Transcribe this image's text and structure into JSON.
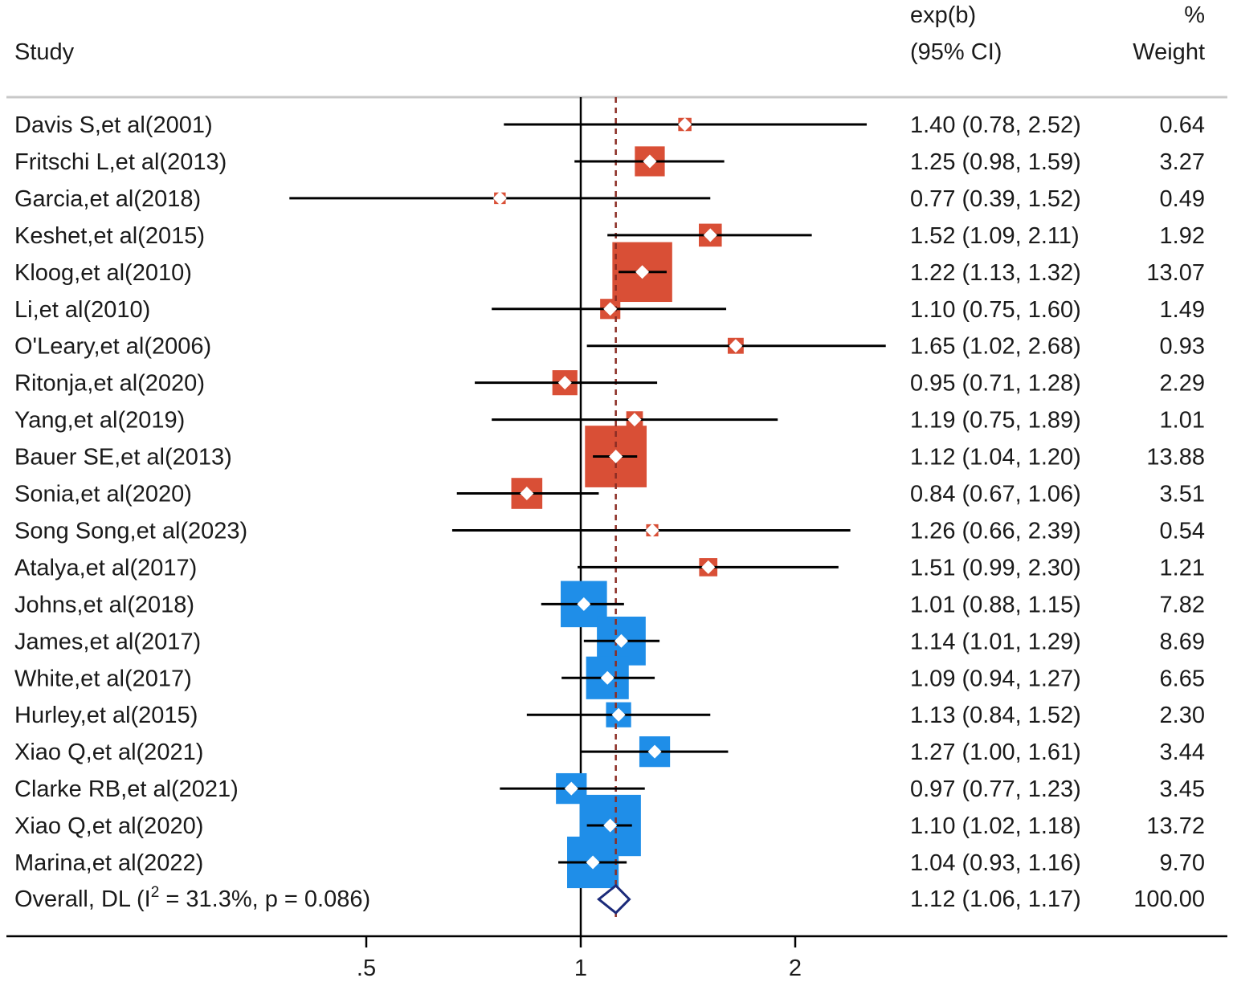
{
  "chart_data": {
    "type": "forest",
    "measure": "exp(b)",
    "header": {
      "study": "Study",
      "effect_line1": "exp(b)",
      "effect_line2": "(95% CI)",
      "weight_line1": "%",
      "weight_line2": "Weight"
    },
    "x_scale": "log",
    "xlim": [
      0.37,
      2.7
    ],
    "null_value": 1,
    "overall_value": 1.12,
    "ticks": [
      {
        "value": 0.5,
        "label": ".5"
      },
      {
        "value": 1,
        "label": "1"
      },
      {
        "value": 2,
        "label": "2"
      }
    ],
    "group_colors": {
      "orange": "#d94f36",
      "blue": "#1f8ee8"
    },
    "marker_color": "#ffffff",
    "ci_color": "#000000",
    "overall_diamond_color": "#1c2b7a",
    "reference_line_color": "#8b2d24",
    "studies": [
      {
        "label": "Davis S,et al(2001)",
        "es": 1.4,
        "lo": 0.78,
        "hi": 2.52,
        "ci_text": "1.40 (0.78, 2.52)",
        "weight": 0.64,
        "weight_text": "0.64",
        "group": "orange"
      },
      {
        "label": "Fritschi L,et al(2013)",
        "es": 1.25,
        "lo": 0.98,
        "hi": 1.59,
        "ci_text": "1.25 (0.98, 1.59)",
        "weight": 3.27,
        "weight_text": "3.27",
        "group": "orange"
      },
      {
        "label": "Garcia,et al(2018)",
        "es": 0.77,
        "lo": 0.39,
        "hi": 1.52,
        "ci_text": "0.77 (0.39, 1.52)",
        "weight": 0.49,
        "weight_text": "0.49",
        "group": "orange"
      },
      {
        "label": "Keshet,et al(2015)",
        "es": 1.52,
        "lo": 1.09,
        "hi": 2.11,
        "ci_text": "1.52 (1.09, 2.11)",
        "weight": 1.92,
        "weight_text": "1.92",
        "group": "orange"
      },
      {
        "label": "Kloog,et al(2010)",
        "es": 1.22,
        "lo": 1.13,
        "hi": 1.32,
        "ci_text": "1.22 (1.13, 1.32)",
        "weight": 13.07,
        "weight_text": "13.07",
        "group": "orange"
      },
      {
        "label": "Li,et al(2010)",
        "es": 1.1,
        "lo": 0.75,
        "hi": 1.6,
        "ci_text": "1.10 (0.75, 1.60)",
        "weight": 1.49,
        "weight_text": "1.49",
        "group": "orange"
      },
      {
        "label": "O'Leary,et al(2006)",
        "es": 1.65,
        "lo": 1.02,
        "hi": 2.68,
        "ci_text": "1.65 (1.02, 2.68)",
        "weight": 0.93,
        "weight_text": "0.93",
        "group": "orange"
      },
      {
        "label": "Ritonja,et al(2020)",
        "es": 0.95,
        "lo": 0.71,
        "hi": 1.28,
        "ci_text": "0.95 (0.71, 1.28)",
        "weight": 2.29,
        "weight_text": "2.29",
        "group": "orange"
      },
      {
        "label": "Yang,et al(2019)",
        "es": 1.19,
        "lo": 0.75,
        "hi": 1.89,
        "ci_text": "1.19 (0.75, 1.89)",
        "weight": 1.01,
        "weight_text": "1.01",
        "group": "orange"
      },
      {
        "label": "Bauer SE,et al(2013)",
        "es": 1.12,
        "lo": 1.04,
        "hi": 1.2,
        "ci_text": "1.12 (1.04, 1.20)",
        "weight": 13.88,
        "weight_text": "13.88",
        "group": "orange"
      },
      {
        "label": "Sonia,et al(2020)",
        "es": 0.84,
        "lo": 0.67,
        "hi": 1.06,
        "ci_text": "0.84 (0.67, 1.06)",
        "weight": 3.51,
        "weight_text": "3.51",
        "group": "orange"
      },
      {
        "label": "Song Song,et al(2023)",
        "es": 1.26,
        "lo": 0.66,
        "hi": 2.39,
        "ci_text": "1.26 (0.66, 2.39)",
        "weight": 0.54,
        "weight_text": "0.54",
        "group": "orange"
      },
      {
        "label": "Atalya,et al(2017)",
        "es": 1.51,
        "lo": 0.99,
        "hi": 2.3,
        "ci_text": "1.51 (0.99, 2.30)",
        "weight": 1.21,
        "weight_text": "1.21",
        "group": "orange"
      },
      {
        "label": "Johns,et al(2018)",
        "es": 1.01,
        "lo": 0.88,
        "hi": 1.15,
        "ci_text": "1.01 (0.88, 1.15)",
        "weight": 7.82,
        "weight_text": "7.82",
        "group": "blue"
      },
      {
        "label": "James,et al(2017)",
        "es": 1.14,
        "lo": 1.01,
        "hi": 1.29,
        "ci_text": "1.14 (1.01, 1.29)",
        "weight": 8.69,
        "weight_text": "8.69",
        "group": "blue"
      },
      {
        "label": "White,et al(2017)",
        "es": 1.09,
        "lo": 0.94,
        "hi": 1.27,
        "ci_text": "1.09 (0.94, 1.27)",
        "weight": 6.65,
        "weight_text": "6.65",
        "group": "blue"
      },
      {
        "label": "Hurley,et al(2015)",
        "es": 1.13,
        "lo": 0.84,
        "hi": 1.52,
        "ci_text": "1.13 (0.84, 1.52)",
        "weight": 2.3,
        "weight_text": "2.30",
        "group": "blue"
      },
      {
        "label": "Xiao Q,et al(2021)",
        "es": 1.27,
        "lo": 1.0,
        "hi": 1.61,
        "ci_text": "1.27 (1.00, 1.61)",
        "weight": 3.44,
        "weight_text": "3.44",
        "group": "blue"
      },
      {
        "label": "Clarke RB,et al(2021)",
        "es": 0.97,
        "lo": 0.77,
        "hi": 1.23,
        "ci_text": "0.97 (0.77, 1.23)",
        "weight": 3.45,
        "weight_text": "3.45",
        "group": "blue"
      },
      {
        "label": "Xiao Q,et al(2020)",
        "es": 1.1,
        "lo": 1.02,
        "hi": 1.18,
        "ci_text": "1.10 (1.02, 1.18)",
        "weight": 13.72,
        "weight_text": "13.72",
        "group": "blue"
      },
      {
        "label": "Marina,et al(2022)",
        "es": 1.04,
        "lo": 0.93,
        "hi": 1.16,
        "ci_text": "1.04 (0.93, 1.16)",
        "weight": 9.7,
        "weight_text": "9.70",
        "group": "blue"
      }
    ],
    "overall": {
      "label_prefix": "Overall, DL (I",
      "label_sup": "2",
      "label_suffix": " = 31.3%, p = 0.086)",
      "es": 1.12,
      "lo": 1.06,
      "hi": 1.17,
      "ci_text": "1.12 (1.06, 1.17)",
      "weight_text": "100.00"
    }
  }
}
